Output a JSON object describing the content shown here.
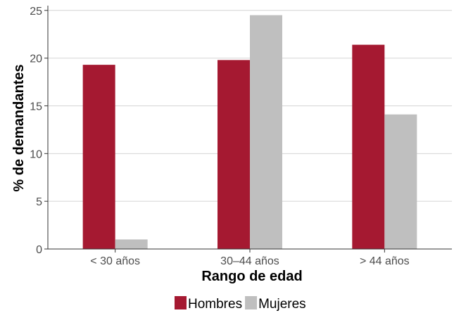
{
  "chart_data": {
    "type": "bar",
    "xlabel": "Rango de edad",
    "ylabel": "% de demandantes",
    "categories": [
      "< 30 años",
      "30–44 años",
      "> 44 años"
    ],
    "ylim": [
      0,
      25.5
    ],
    "yticks": [
      0,
      5,
      10,
      15,
      20,
      25
    ],
    "grid": "horizontal",
    "legend_position": "bottom",
    "series": [
      {
        "name": "Hombres",
        "color": "#a51931",
        "values": [
          19.3,
          19.8,
          21.4
        ]
      },
      {
        "name": "Mujeres",
        "color": "#bfbfbf",
        "values": [
          1.0,
          24.5,
          14.1
        ]
      }
    ]
  }
}
